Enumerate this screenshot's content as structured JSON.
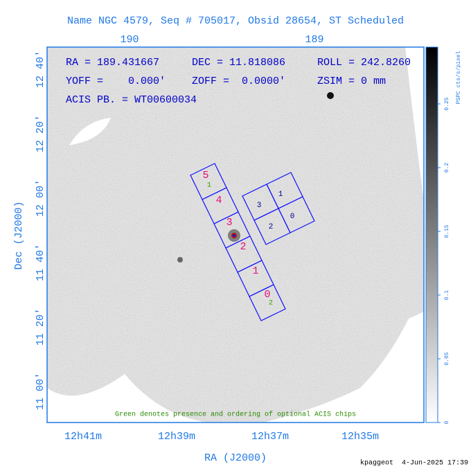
{
  "title": "Name NGC 4579, Seq # 705017, Obsid 28654, ST Scheduled",
  "top_axis": {
    "labels": [
      "190",
      "189"
    ]
  },
  "left_axis": {
    "labels": [
      "12 40'",
      "12 20'",
      "12 00'",
      "11 40'",
      "11 20'",
      "11 00'"
    ],
    "title": "Dec (J2000)"
  },
  "bottom_axis": {
    "labels": [
      "12h41m",
      "12h39m",
      "12h37m",
      "12h35m"
    ],
    "title": "RA (J2000)"
  },
  "info": [
    "RA = 189.431667",
    "DEC = 11.818086",
    "ROLL = 242.8260",
    "YOFF =    0.000'",
    "ZOFF =  0.0000'",
    "ZSIM = 0 mm",
    "ACIS PB. = WT00600034"
  ],
  "note": "Green denotes presence and ordering of optional ACIS chips",
  "colorbar": {
    "label": "PSPC cts/s/pixel",
    "ticks": [
      0,
      0.05,
      0.1,
      0.15,
      0.2,
      0.25
    ]
  },
  "chips": {
    "s_array": [
      "5",
      "4",
      "3",
      "2",
      "1",
      "0"
    ],
    "optional": [
      "1",
      "2"
    ],
    "i_array": [
      "3",
      "1",
      "2",
      "0"
    ]
  },
  "footer": "kpaggeot  4-Jun-2025 17:39"
}
